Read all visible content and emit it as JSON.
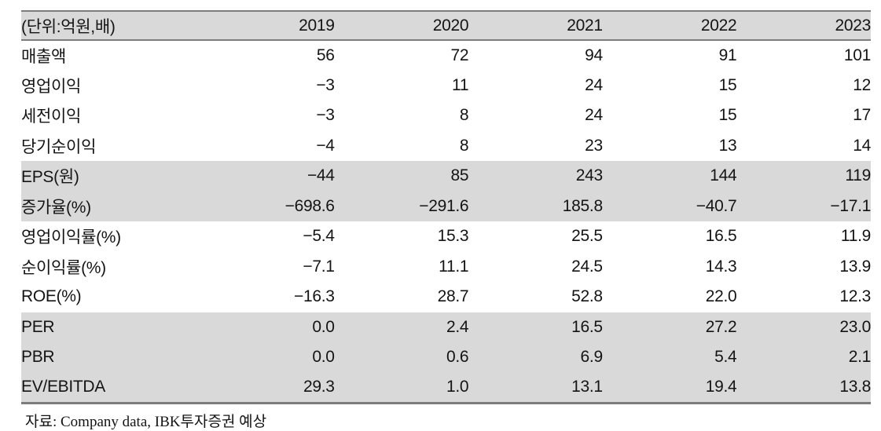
{
  "table": {
    "unit_label": "(단위:억원,배)",
    "years": [
      "2019",
      "2020",
      "2021",
      "2022",
      "2023"
    ],
    "rows": [
      {
        "label": "매출액",
        "values": [
          "56",
          "72",
          "94",
          "91",
          "101"
        ],
        "shaded": false
      },
      {
        "label": "영업이익",
        "values": [
          "−3",
          "11",
          "24",
          "15",
          "12"
        ],
        "shaded": false
      },
      {
        "label": "세전이익",
        "values": [
          "−3",
          "8",
          "24",
          "15",
          "17"
        ],
        "shaded": false
      },
      {
        "label": "당기순이익",
        "values": [
          "−4",
          "8",
          "23",
          "13",
          "14"
        ],
        "shaded": false
      },
      {
        "label": "EPS(원)",
        "values": [
          "−44",
          "85",
          "243",
          "144",
          "119"
        ],
        "shaded": true
      },
      {
        "label": "증가율(%)",
        "values": [
          "−698.6",
          "−291.6",
          "185.8",
          "−40.7",
          "−17.1"
        ],
        "shaded": true
      },
      {
        "label": "영업이익률(%)",
        "values": [
          "−5.4",
          "15.3",
          "25.5",
          "16.5",
          "11.9"
        ],
        "shaded": false
      },
      {
        "label": "순이익률(%)",
        "values": [
          "−7.1",
          "11.1",
          "24.5",
          "14.3",
          "13.9"
        ],
        "shaded": false
      },
      {
        "label": "ROE(%)",
        "values": [
          "−16.3",
          "28.7",
          "52.8",
          "22.0",
          "12.3"
        ],
        "shaded": false
      },
      {
        "label": "PER",
        "values": [
          "0.0",
          "2.4",
          "16.5",
          "27.2",
          "23.0"
        ],
        "shaded": true
      },
      {
        "label": "PBR",
        "values": [
          "0.0",
          "0.6",
          "6.9",
          "5.4",
          "2.1"
        ],
        "shaded": true
      },
      {
        "label": "EV/EBITDA",
        "values": [
          "29.3",
          "1.0",
          "13.1",
          "19.4",
          "13.8"
        ],
        "shaded": true
      }
    ]
  },
  "footer": {
    "source_label": "자료: Company data, IBK투자증권 예상"
  },
  "colors": {
    "band": "#d9d9d9",
    "border": "#7c7c7c",
    "text": "#141414"
  }
}
